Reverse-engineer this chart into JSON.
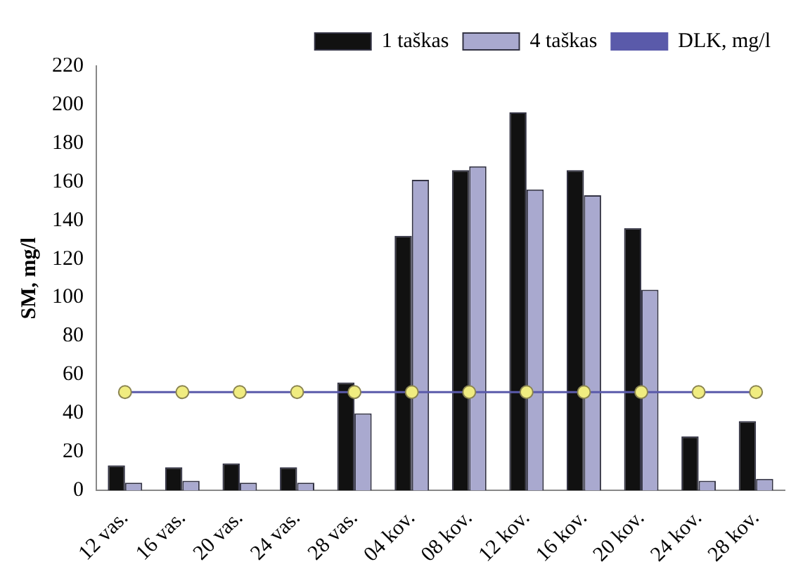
{
  "chart_data": {
    "type": "bar",
    "ylabel": "SM, mg/l",
    "categories": [
      "12 vas.",
      "16 vas.",
      "20 vas.",
      "24 vas.",
      "28 vas.",
      "04 kov.",
      "08 kov.",
      "12 kov.",
      "16 kov.",
      "20 kov.",
      "24 kov.",
      "28 kov."
    ],
    "series": [
      {
        "name": "1 taškas",
        "color": "#111111",
        "values": [
          13,
          12,
          14,
          12,
          56,
          132,
          166,
          196,
          166,
          136,
          28,
          36
        ]
      },
      {
        "name": "4 taškas",
        "color": "#a9a9cf",
        "values": [
          4,
          5,
          4,
          4,
          40,
          161,
          168,
          156,
          153,
          104,
          5,
          6
        ]
      },
      {
        "name": "DLK, mg/l",
        "type": "line",
        "color": "#5a5aaa",
        "marker": "circle",
        "values": [
          51,
          51,
          51,
          51,
          51,
          51,
          51,
          51,
          51,
          51,
          51,
          51
        ]
      }
    ],
    "ylim": [
      0,
      220
    ],
    "yticks": [
      0,
      20,
      40,
      60,
      80,
      100,
      120,
      140,
      160,
      180,
      200,
      220
    ],
    "grid": false,
    "legend": "top"
  }
}
